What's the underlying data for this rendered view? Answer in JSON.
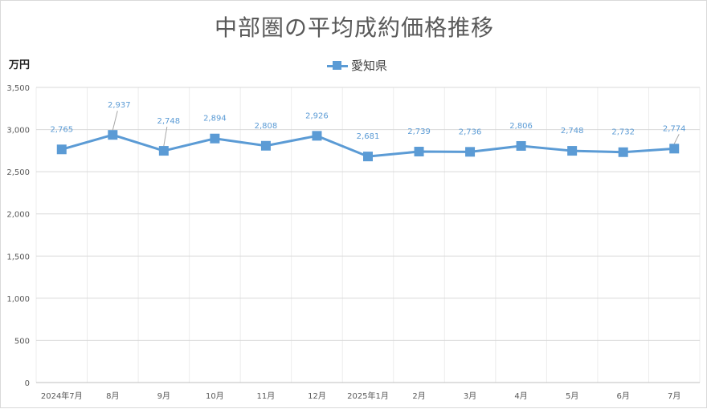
{
  "chart_data": {
    "type": "line",
    "title": "中部圏の平均成約価格推移",
    "ylabel": "万円",
    "xlabel": "",
    "categories": [
      "2024年7月",
      "8月",
      "9月",
      "10月",
      "11月",
      "12月",
      "2025年1月",
      "2月",
      "3月",
      "4月",
      "5月",
      "6月",
      "7月"
    ],
    "series": [
      {
        "name": "愛知県",
        "color": "#5b9bd5",
        "values": [
          2765,
          2937,
          2748,
          2894,
          2808,
          2926,
          2681,
          2739,
          2736,
          2806,
          2748,
          2732,
          2774
        ],
        "labels": [
          "2,765",
          "2,937",
          "2,748",
          "2,894",
          "2,808",
          "2,926",
          "2,681",
          "2,739",
          "2,736",
          "2,806",
          "2,748",
          "2,732",
          "2,774"
        ]
      }
    ],
    "ylim": [
      0,
      3500
    ],
    "yticks": [
      0,
      500,
      1000,
      1500,
      2000,
      2500,
      3000,
      3500
    ],
    "ytick_labels": [
      "0",
      "500",
      "1,000",
      "1,500",
      "2,000",
      "2,500",
      "3,000",
      "3,500"
    ],
    "grid": true,
    "legend_position": "top-center"
  }
}
